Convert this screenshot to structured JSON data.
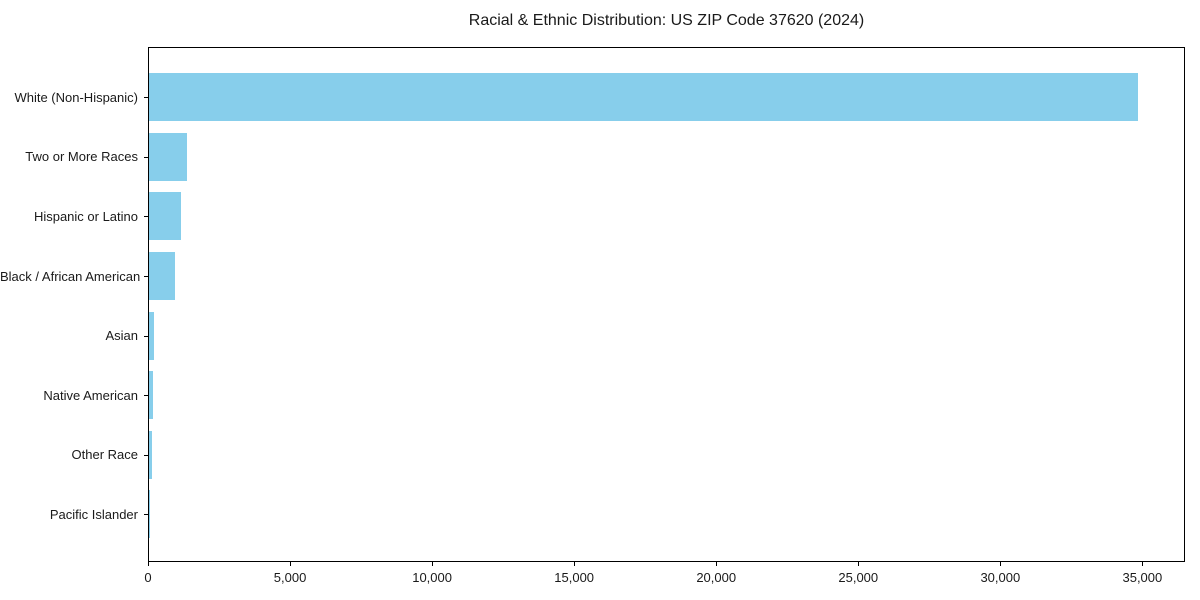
{
  "chart_data": {
    "type": "bar",
    "orientation": "horizontal",
    "title": "Racial & Ethnic Distribution: US ZIP Code 37620 (2024)",
    "xlabel": "",
    "ylabel": "",
    "categories": [
      "White (Non-Hispanic)",
      "Two or More Races",
      "Hispanic or Latino",
      "Black / African American",
      "Asian",
      "Native American",
      "Other Race",
      "Pacific Islander"
    ],
    "values": [
      34800,
      1320,
      1120,
      920,
      160,
      150,
      110,
      15
    ],
    "bar_color": "#87CEEB",
    "xlim": [
      0,
      36500
    ],
    "x_ticks": [
      0,
      5000,
      10000,
      15000,
      20000,
      25000,
      30000,
      35000
    ],
    "x_tick_labels": [
      "0",
      "5,000",
      "10,000",
      "15,000",
      "20,000",
      "25,000",
      "30,000",
      "35,000"
    ],
    "grid": false,
    "legend": null,
    "background_color": "#ffffff",
    "text_color": "#1a1a1a"
  }
}
